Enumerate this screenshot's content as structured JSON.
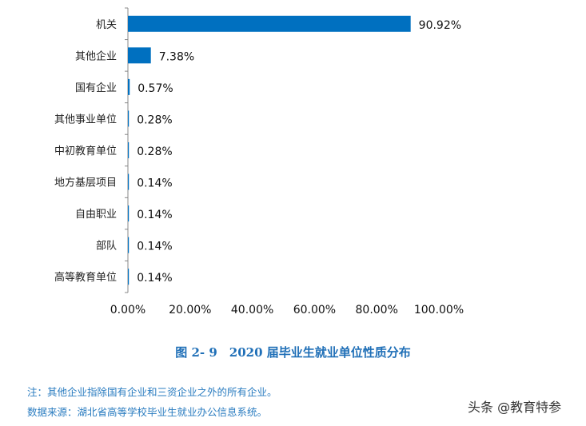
{
  "chart_data": {
    "type": "bar",
    "orientation": "horizontal",
    "categories": [
      "机关",
      "其他企业",
      "国有企业",
      "其他事业单位",
      "中初教育单位",
      "地方基层项目",
      "自由职业",
      "部队",
      "高等教育单位"
    ],
    "values": [
      90.92,
      7.38,
      0.57,
      0.28,
      0.28,
      0.14,
      0.14,
      0.14,
      0.14
    ],
    "data_labels": [
      "90.92%",
      "7.38%",
      "0.57%",
      "0.28%",
      "0.28%",
      "0.14%",
      "0.14%",
      "0.14%",
      "0.14%"
    ],
    "xlim": [
      0,
      100
    ],
    "x_ticks": [
      "0.00%",
      "20.00%",
      "40.00%",
      "60.00%",
      "80.00%",
      "100.00%"
    ],
    "grid": false,
    "bar_color": "#0070c0",
    "title": "图 2- 9　2020 届毕业生就业单位性质分布"
  },
  "notes": {
    "note": "注：其他企业指除国有企业和三资企业之外的所有企业。",
    "source": "数据来源：湖北省高等学校毕业生就业办公信息系统。"
  },
  "watermark": "头条 @教育特参"
}
